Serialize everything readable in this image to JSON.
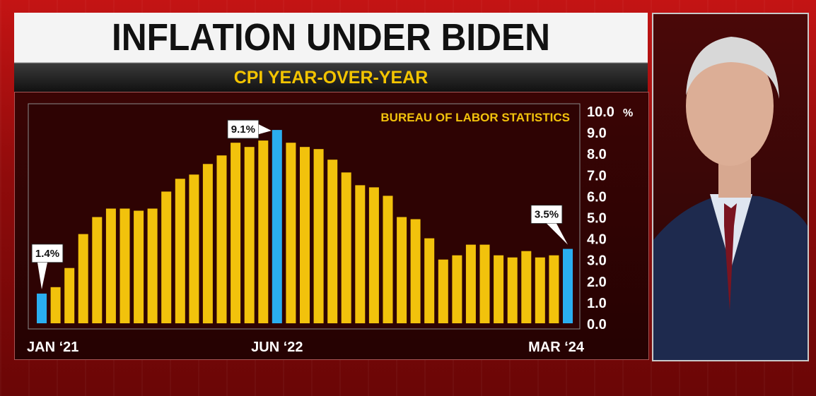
{
  "header": {
    "title": "INFLATION UNDER BIDEN",
    "subtitle": "CPI YEAR-OVER-YEAR"
  },
  "chart_data": {
    "type": "bar",
    "source": "BUREAU OF LABOR STATISTICS",
    "x_tick_labels": [
      "JAN ‘21",
      "JUN ‘22",
      "MAR ‘24"
    ],
    "y_ticks": [
      "0.0",
      "1.0",
      "2.0",
      "3.0",
      "4.0",
      "5.0",
      "6.0",
      "7.0",
      "8.0",
      "9.0",
      "10.0"
    ],
    "y_unit": "%",
    "ylim": [
      0,
      10
    ],
    "start_month": "JAN ‘21",
    "end_month": "MAR ‘24",
    "values": [
      1.4,
      1.7,
      2.6,
      4.2,
      5.0,
      5.4,
      5.4,
      5.3,
      5.4,
      6.2,
      6.8,
      7.0,
      7.5,
      7.9,
      8.5,
      8.3,
      8.6,
      9.1,
      8.5,
      8.3,
      8.2,
      7.7,
      7.1,
      6.5,
      6.4,
      6.0,
      5.0,
      4.9,
      4.0,
      3.0,
      3.2,
      3.7,
      3.7,
      3.2,
      3.1,
      3.4,
      3.1,
      3.2,
      3.5
    ],
    "highlight_indices": [
      0,
      17,
      38
    ],
    "callouts": [
      {
        "index": 0,
        "label": "1.4%"
      },
      {
        "index": 17,
        "label": "9.1%"
      },
      {
        "index": 38,
        "label": "3.5%"
      }
    ],
    "colors": {
      "bar": "#f2c20c",
      "highlight": "#2aaef0",
      "source_text": "#f2c20c",
      "axis_text": "#ffffff"
    }
  }
}
